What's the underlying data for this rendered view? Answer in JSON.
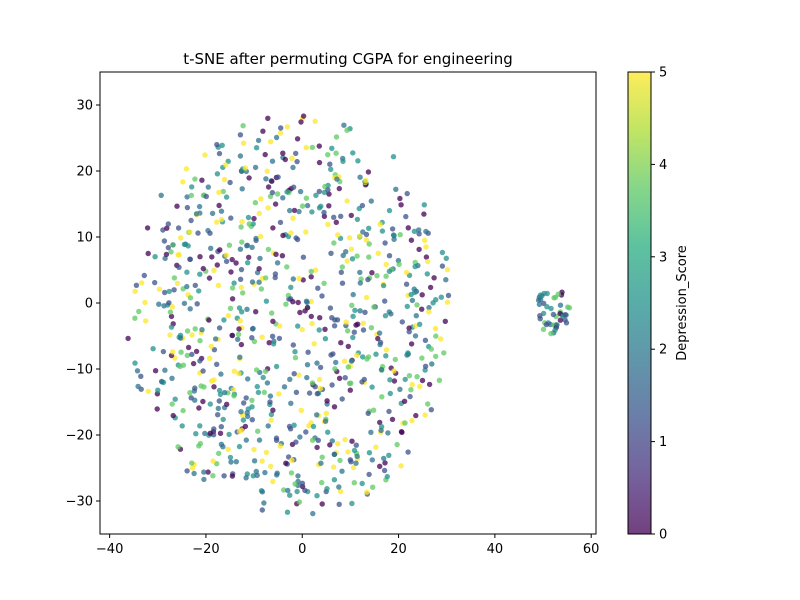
{
  "chart_data": {
    "type": "scatter",
    "title": "t-SNE after permuting CGPA for engineering",
    "xlabel": "",
    "ylabel": "",
    "xlim": [
      -42,
      61
    ],
    "ylim": [
      -35,
      35
    ],
    "xticks": [
      -40,
      -20,
      0,
      20,
      40,
      60
    ],
    "yticks": [
      -30,
      -20,
      -10,
      0,
      10,
      20,
      30
    ],
    "grid": false,
    "legend": "none",
    "marker_alpha": 0.75,
    "colormap": "viridis",
    "colorbar": {
      "label": "Depression_Score",
      "range": [
        0,
        5
      ],
      "ticks": [
        0,
        1,
        2,
        3,
        4,
        5
      ]
    },
    "clusters": [
      {
        "role": "main",
        "center": [
          -2,
          -2
        ],
        "x_range": [
          -37,
          31
        ],
        "y_range": [
          -32,
          32
        ],
        "approx_points": 900
      },
      {
        "role": "secondary",
        "center": [
          52,
          -1
        ],
        "x_range": [
          49,
          56
        ],
        "y_range": [
          -5,
          3
        ],
        "approx_points": 45
      }
    ]
  }
}
